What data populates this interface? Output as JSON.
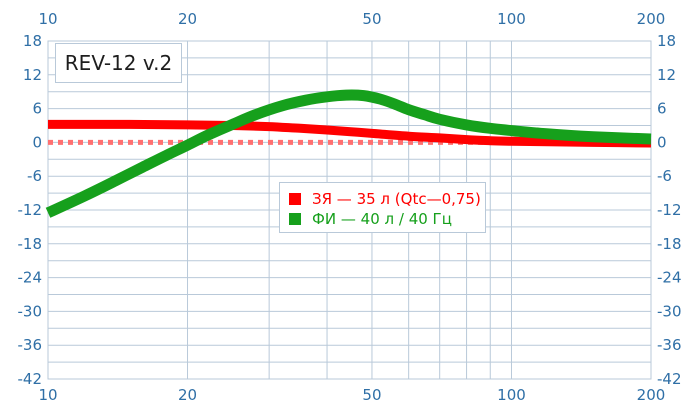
{
  "title": "REV-12 v.2",
  "legend": [
    {
      "label": "ЗЯ — 35 л (Qtc—0,75)",
      "color": "#ff0000"
    },
    {
      "label": "ФИ — 40 л / 40 Гц",
      "color": "#16a01c"
    }
  ],
  "chart_data": {
    "type": "line",
    "x_scale": "log",
    "xlim": [
      10,
      200
    ],
    "ylim": [
      -42,
      18
    ],
    "x_ticks": [
      "10",
      "20",
      "50",
      "100",
      "200"
    ],
    "x_tick_values": [
      10,
      20,
      50,
      100,
      200
    ],
    "x_minor_grid": [
      30,
      40,
      60,
      70,
      80,
      90
    ],
    "y_ticks": [
      "18",
      "12",
      "6",
      "0",
      "-6",
      "-12",
      "-18",
      "-24",
      "-30",
      "-36",
      "-42"
    ],
    "y_tick_values": [
      18,
      12,
      6,
      0,
      -6,
      -12,
      -18,
      -24,
      -30,
      -36,
      -42
    ],
    "y_minor_step": 3,
    "reference_line": {
      "y": 0,
      "color": "#ff7070",
      "style": "dotted"
    },
    "series": [
      {
        "name": "ЗЯ — 35 л (Qtc—0,75)",
        "color": "#ff0000",
        "x": [
          10,
          15,
          20,
          25,
          30,
          35,
          40,
          45,
          50,
          60,
          70,
          80,
          90,
          100,
          120,
          150,
          200
        ],
        "y": [
          3.2,
          3.2,
          3.1,
          3.0,
          2.8,
          2.5,
          2.2,
          1.9,
          1.6,
          1.1,
          0.8,
          0.5,
          0.3,
          0.2,
          0.1,
          0.0,
          -0.1
        ]
      },
      {
        "name": "ФИ — 40 л / 40 Гц",
        "color": "#16a01c",
        "x": [
          10,
          12,
          14,
          16,
          18,
          20,
          22,
          25,
          28,
          32,
          36,
          40,
          44,
          48,
          52,
          56,
          60,
          65,
          70,
          80,
          90,
          100,
          120,
          150,
          200
        ],
        "y": [
          -12.5,
          -9.5,
          -6.8,
          -4.4,
          -2.3,
          -0.5,
          1.2,
          3.2,
          4.9,
          6.5,
          7.5,
          8.1,
          8.4,
          8.3,
          7.7,
          6.8,
          5.8,
          4.9,
          4.1,
          3.1,
          2.5,
          2.1,
          1.5,
          1.0,
          0.6
        ]
      }
    ]
  }
}
